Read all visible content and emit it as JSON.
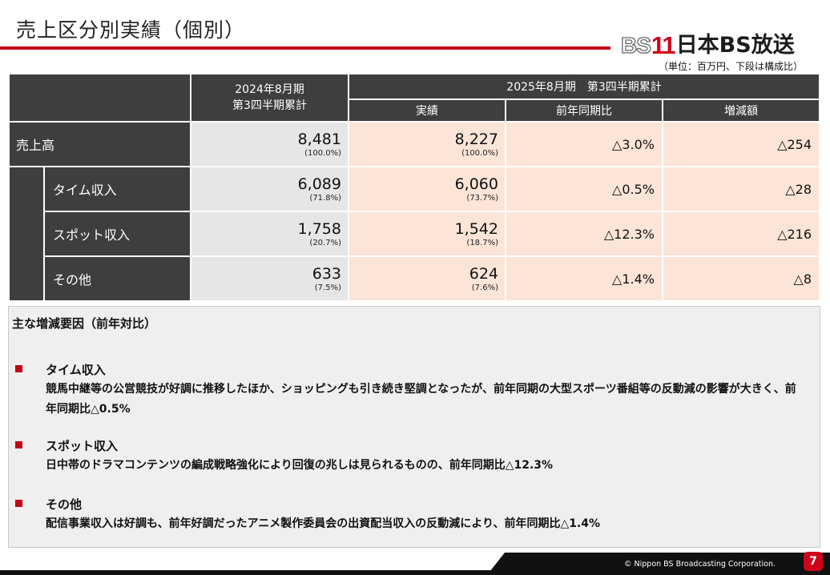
{
  "title": "売上区分別実績（個別）",
  "logo": {
    "bs": "BS",
    "num": "11",
    "brand": "日本BS放送"
  },
  "unit_note": "（単位：百万円、下段は構成比）",
  "table": {
    "col_prev": "2024年8月期\n第3四半期累計",
    "col_curr_group": "2025年8月期　第3四半期累計",
    "col_actual": "実績",
    "col_yoy": "前年同期比",
    "col_diff": "増減額",
    "rows": [
      {
        "label": "売上高",
        "prev": "8,481",
        "prev_pct": "(100.0%)",
        "curr": "8,227",
        "curr_pct": "(100.0%)",
        "yoy": "△3.0%",
        "diff": "△254"
      },
      {
        "label": "タイム収入",
        "prev": "6,089",
        "prev_pct": "(71.8%)",
        "curr": "6,060",
        "curr_pct": "(73.7%)",
        "yoy": "△0.5%",
        "diff": "△28"
      },
      {
        "label": "スポット収入",
        "prev": "1,758",
        "prev_pct": "(20.7%)",
        "curr": "1,542",
        "curr_pct": "(18.7%)",
        "yoy": "△12.3%",
        "diff": "△216"
      },
      {
        "label": "その他",
        "prev": "633",
        "prev_pct": "(7.5%)",
        "curr": "624",
        "curr_pct": "(7.6%)",
        "yoy": "△1.4%",
        "diff": "△8"
      }
    ]
  },
  "factors": {
    "heading": "主な増減要因（前年対比）",
    "items": [
      {
        "title": "タイム収入",
        "body": "競馬中継等の公営競技が好調に推移したほか、ショッピングも引き続き堅調となったが、前年同期の大型スポーツ番組等の反動減の影響が大きく、前年同期比△0.5%"
      },
      {
        "title": "スポット収入",
        "body": "日中帯のドラマコンテンツの編成戦略強化により回復の兆しは見られるものの、前年同期比△12.3%"
      },
      {
        "title": "その他",
        "body": "配信事業収入は好調も、前年好調だったアニメ製作委員会の出資配当収入の反動減により、前年同期比△1.4%"
      }
    ]
  },
  "footer": {
    "copyright": "© Nippon BS Broadcasting Corporation.",
    "page": "7"
  },
  "colors": {
    "accent_red": "#c40018",
    "header_dark": "#3e3e3e",
    "gray_cell": "#e6e6e6",
    "peach_cell": "#fce4d6"
  }
}
